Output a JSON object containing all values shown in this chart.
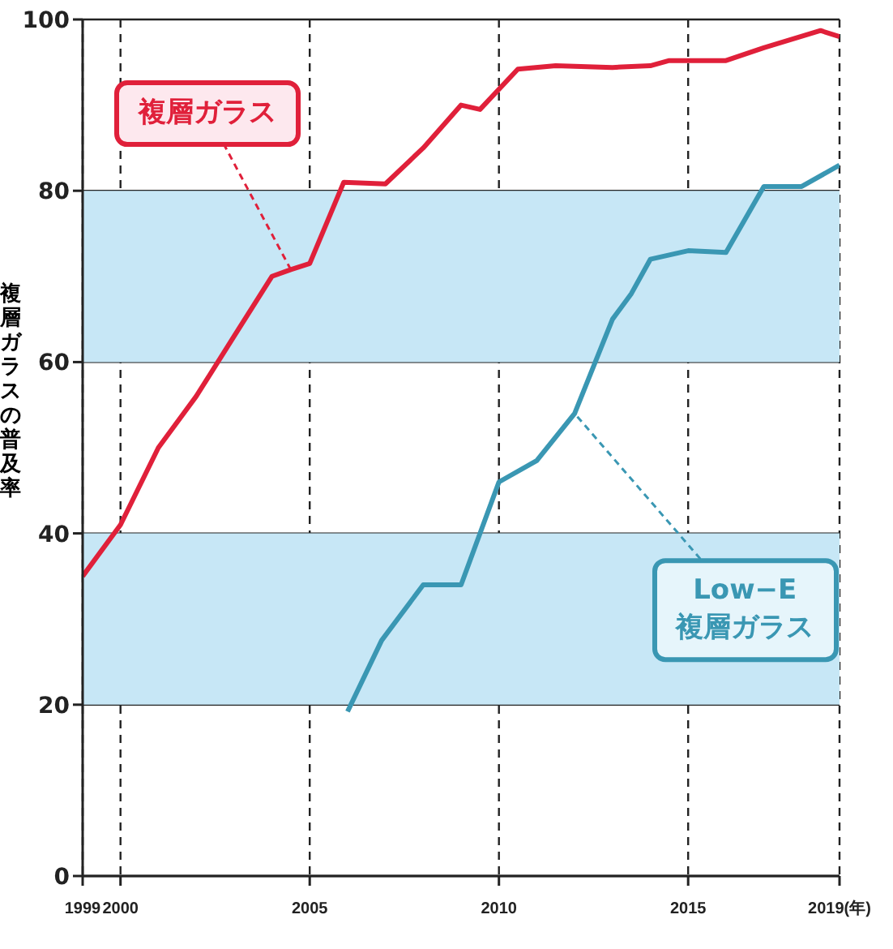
{
  "chart_data": {
    "type": "line",
    "ylabel": "複層ガラスの普及率",
    "xlim": [
      1999,
      2019
    ],
    "xticks": [
      1999,
      2000,
      2005,
      2010,
      2015,
      {
        "value": 2019,
        "label": "2019(年)"
      }
    ],
    "ylim": [
      0,
      100
    ],
    "yticks": [
      0,
      20,
      40,
      60,
      80,
      100
    ],
    "grid": true,
    "legend": false,
    "marker": "none",
    "line_style": "solid",
    "bands": [
      {
        "axis": "y",
        "from": 20,
        "to": 40,
        "color": "#c7e7f6"
      },
      {
        "axis": "y",
        "from": 60,
        "to": 80,
        "color": "#c7e7f6"
      }
    ],
    "series": [
      {
        "name": "複層ガラス",
        "color": "#e0203a",
        "x": [
          1999,
          2000,
          2001,
          2002,
          2003,
          2004,
          2004.5,
          2005,
          2005.9,
          2007,
          2008,
          2009,
          2009.5,
          2010.5,
          2011.5,
          2013,
          2014,
          2014.5,
          2016,
          2017,
          2018.5,
          2019
        ],
        "values": [
          35,
          41,
          50,
          56,
          63,
          70,
          70.8,
          71.5,
          81,
          80.8,
          85,
          90,
          89.5,
          94.2,
          94.6,
          94.4,
          94.6,
          95.2,
          95.2,
          96.7,
          98.7,
          98
        ]
      },
      {
        "name": "Low−E\n複層ガラス",
        "color": "#3a97b3",
        "x": [
          2006,
          2006.9,
          2008,
          2009,
          2010,
          2011,
          2012,
          2013,
          2013.5,
          2014,
          2015,
          2016,
          2017,
          2018,
          2019
        ],
        "values": [
          19.2,
          27.5,
          34,
          34,
          46,
          48.5,
          54,
          65,
          68,
          72,
          73,
          72.8,
          80.5,
          80.5,
          83
        ]
      }
    ]
  }
}
